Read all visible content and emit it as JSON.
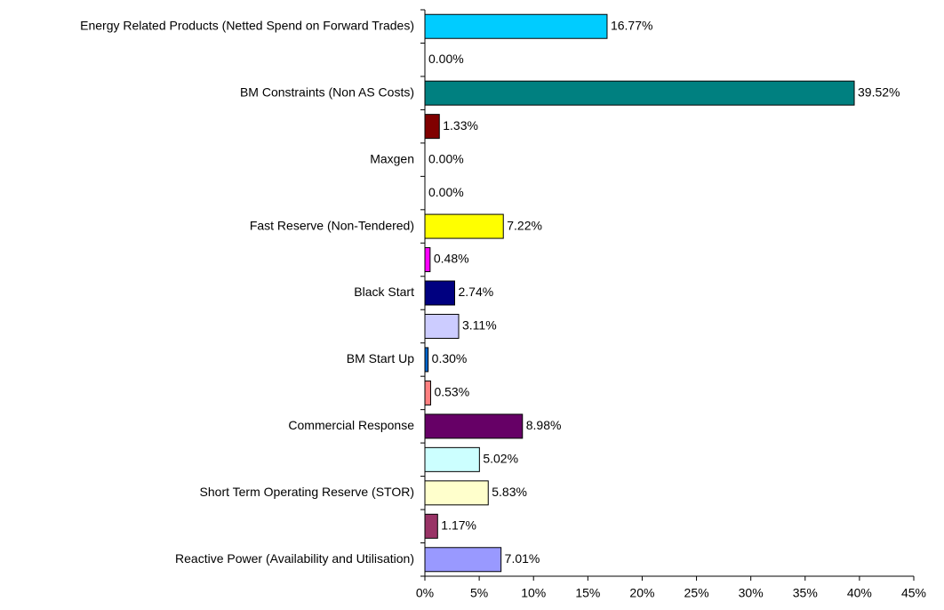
{
  "chart_data": {
    "type": "bar",
    "orientation": "horizontal",
    "categories": [
      "Energy Related Products (Netted Spend on Forward Trades)",
      null,
      "BM Constraints (Non AS Costs)",
      null,
      "Maxgen",
      null,
      "Fast Reserve (Non-Tendered)",
      null,
      "Black Start",
      null,
      "BM Start Up",
      null,
      "Commercial Response",
      null,
      "Short Term Operating Reserve (STOR)",
      null,
      "Reactive Power (Availability and Utilisation)"
    ],
    "values": [
      16.77,
      0.0,
      39.52,
      1.33,
      0.0,
      0.0,
      7.22,
      0.48,
      2.74,
      3.11,
      0.3,
      0.53,
      8.98,
      5.02,
      5.83,
      1.17,
      7.01
    ],
    "value_labels": [
      "16.77%",
      "0.00%",
      "39.52%",
      "1.33%",
      "0.00%",
      "0.00%",
      "7.22%",
      "0.48%",
      "2.74%",
      "3.11%",
      "0.30%",
      "0.53%",
      "8.98%",
      "5.02%",
      "5.83%",
      "1.17%",
      "7.01%"
    ],
    "colors": [
      "#00ccff",
      "#ffffff",
      "#008080",
      "#800000",
      "#ffffff",
      "#ffffff",
      "#ffff00",
      "#ff00ff",
      "#000080",
      "#ccccff",
      "#0066cc",
      "#ff8080",
      "#660066",
      "#ccffff",
      "#ffffcc",
      "#993366",
      "#9999ff"
    ],
    "xlim": [
      0,
      45
    ],
    "xticks": [
      {
        "value": 0,
        "label": "0%"
      },
      {
        "value": 5,
        "label": "5%"
      },
      {
        "value": 10,
        "label": "10%"
      },
      {
        "value": 15,
        "label": "15%"
      },
      {
        "value": 20,
        "label": "20%"
      },
      {
        "value": 25,
        "label": "25%"
      },
      {
        "value": 30,
        "label": "30%"
      },
      {
        "value": 35,
        "label": "35%"
      },
      {
        "value": 40,
        "label": "40%"
      },
      {
        "value": 45,
        "label": "45%"
      }
    ],
    "grid": false
  }
}
